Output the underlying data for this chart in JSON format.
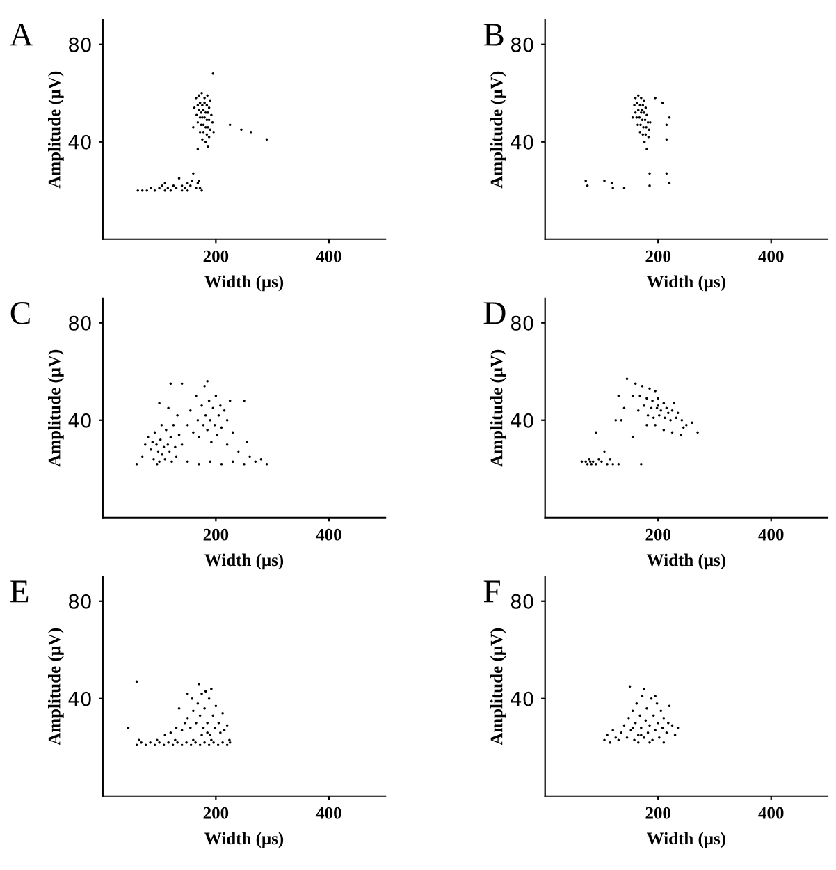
{
  "chart_data": [
    {
      "type": "scatter",
      "title": "A",
      "xlabel": "Width (μs)",
      "ylabel": "Amplitude (μV)",
      "xlim": [
        0,
        500
      ],
      "ylim": [
        0,
        90
      ],
      "xticks": [
        200,
        400
      ],
      "yticks": [
        40,
        80
      ],
      "marker": "circle",
      "series": [
        {
          "color": "#000000",
          "x": [
            165,
            170,
            175,
            180,
            185,
            190,
            168,
            172,
            176,
            180,
            184,
            188,
            162,
            170,
            174,
            178,
            182,
            186,
            192,
            166,
            172,
            176,
            180,
            184,
            188,
            194,
            168,
            174,
            178,
            182,
            186,
            190,
            172,
            178,
            184,
            188,
            176,
            182,
            160,
            196,
            186,
            168,
            195,
            225,
            245,
            262,
            290,
            62,
            70,
            78,
            85,
            92,
            100,
            105,
            110,
            115,
            120,
            125,
            130,
            135,
            140,
            145,
            150,
            155,
            158,
            160,
            165,
            168,
            170,
            172,
            175,
            110,
            140,
            150
          ],
          "values": [
            58,
            59,
            60,
            58,
            59,
            57,
            55,
            56,
            55,
            56,
            55,
            54,
            54,
            53,
            52,
            53,
            52,
            52,
            51,
            51,
            50,
            50,
            50,
            49,
            49,
            48,
            48,
            47,
            47,
            46,
            46,
            45,
            44,
            44,
            43,
            42,
            41,
            40,
            46,
            44,
            38,
            37,
            68,
            47,
            45,
            44,
            41,
            20,
            20,
            20,
            21,
            20,
            21,
            22,
            23,
            21,
            20,
            22,
            21,
            25,
            22,
            21,
            23,
            22,
            24,
            27,
            21,
            23,
            24,
            21,
            20,
            20,
            20,
            20
          ]
        }
      ]
    },
    {
      "type": "scatter",
      "title": "B",
      "xlabel": "Width (μs)",
      "ylabel": "Amplitude (μV)",
      "xlim": [
        0,
        500
      ],
      "ylim": [
        0,
        90
      ],
      "xticks": [
        200,
        400
      ],
      "yticks": [
        40,
        80
      ],
      "marker": "circle",
      "series": [
        {
          "color": "#000000",
          "x": [
            160,
            165,
            170,
            175,
            158,
            163,
            168,
            173,
            178,
            160,
            165,
            170,
            175,
            180,
            162,
            167,
            172,
            177,
            182,
            164,
            169,
            174,
            179,
            184,
            168,
            173,
            178,
            183,
            176,
            180,
            155,
            186,
            172,
            195,
            208,
            220,
            215,
            215,
            72,
            75,
            105,
            118,
            120,
            140,
            185,
            185,
            215,
            220
          ],
          "values": [
            58,
            59,
            58,
            57,
            55,
            56,
            55,
            55,
            54,
            52,
            53,
            52,
            52,
            51,
            50,
            50,
            49,
            49,
            48,
            47,
            47,
            46,
            46,
            45,
            44,
            43,
            43,
            42,
            40,
            37,
            50,
            48,
            53,
            58,
            56,
            50,
            47,
            41,
            24,
            22,
            24,
            23,
            21,
            21,
            27,
            22,
            27,
            23
          ]
        }
      ]
    },
    {
      "type": "scatter",
      "title": "C",
      "xlabel": "Width (μs)",
      "ylabel": "Amplitude (μV)",
      "xlim": [
        0,
        500
      ],
      "ylim": [
        0,
        90
      ],
      "xticks": [
        200,
        400
      ],
      "yticks": [
        40,
        80
      ],
      "marker": "circle",
      "series": [
        {
          "color": "#000000",
          "x": [
            60,
            70,
            75,
            80,
            85,
            90,
            92,
            95,
            98,
            100,
            102,
            105,
            108,
            110,
            112,
            115,
            118,
            120,
            122,
            125,
            128,
            130,
            135,
            140,
            88,
            96,
            104,
            116,
            100,
            132,
            150,
            155,
            160,
            165,
            168,
            170,
            175,
            178,
            180,
            182,
            185,
            188,
            190,
            192,
            195,
            198,
            200,
            202,
            205,
            208,
            210,
            215,
            220,
            225,
            230,
            185,
            140,
            120,
            250,
            150,
            170,
            190,
            210,
            230,
            250,
            260,
            270,
            280,
            290,
            240,
            220,
            255
          ],
          "values": [
            22,
            25,
            30,
            33,
            28,
            24,
            35,
            30,
            27,
            23,
            32,
            26,
            29,
            24,
            36,
            30,
            27,
            33,
            23,
            38,
            29,
            25,
            34,
            30,
            31,
            22,
            38,
            45,
            47,
            42,
            38,
            44,
            35,
            50,
            40,
            33,
            46,
            38,
            54,
            42,
            36,
            48,
            40,
            31,
            45,
            38,
            50,
            34,
            42,
            46,
            37,
            44,
            40,
            48,
            35,
            56,
            55,
            55,
            48,
            23,
            22,
            23,
            22,
            23,
            22,
            25,
            23,
            24,
            22,
            27,
            30,
            31
          ]
        }
      ]
    },
    {
      "type": "scatter",
      "title": "D",
      "xlabel": "Width (μs)",
      "ylabel": "Amplitude (μV)",
      "xlim": [
        0,
        500
      ],
      "ylim": [
        0,
        90
      ],
      "xticks": [
        200,
        400
      ],
      "yticks": [
        40,
        80
      ],
      "marker": "circle",
      "series": [
        {
          "color": "#000000",
          "x": [
            145,
            160,
            172,
            185,
            195,
            155,
            168,
            180,
            190,
            200,
            210,
            175,
            188,
            198,
            205,
            215,
            225,
            235,
            182,
            192,
            202,
            212,
            222,
            232,
            242,
            250,
            260,
            270,
            195,
            210,
            225,
            240,
            180,
            130,
            140,
            135,
            125,
            155,
            165,
            200,
            218,
            228,
            245,
            65,
            72,
            75,
            78,
            80,
            82,
            85,
            90,
            95,
            100,
            105,
            110,
            115,
            120,
            130,
            90,
            170
          ],
          "values": [
            57,
            55,
            54,
            53,
            52,
            50,
            50,
            49,
            48,
            49,
            47,
            46,
            45,
            45,
            44,
            45,
            44,
            43,
            42,
            41,
            42,
            41,
            40,
            41,
            40,
            38,
            39,
            35,
            38,
            36,
            35,
            34,
            38,
            50,
            45,
            40,
            40,
            33,
            44,
            46,
            43,
            47,
            37,
            23,
            23,
            22,
            24,
            23,
            22,
            23,
            22,
            24,
            23,
            27,
            22,
            24,
            22,
            22,
            35,
            22
          ]
        }
      ]
    },
    {
      "type": "scatter",
      "title": "E",
      "xlabel": "Width (μs)",
      "ylabel": "Amplitude (μV)",
      "xlim": [
        0,
        500
      ],
      "ylim": [
        0,
        90
      ],
      "xticks": [
        200,
        400
      ],
      "yticks": [
        40,
        80
      ],
      "marker": "circle",
      "series": [
        {
          "color": "#000000",
          "x": [
            60,
            68,
            76,
            84,
            92,
            100,
            108,
            116,
            124,
            132,
            140,
            148,
            156,
            164,
            172,
            180,
            188,
            196,
            204,
            212,
            220,
            225,
            64,
            96,
            128,
            160,
            192,
            224,
            110,
            120,
            130,
            140,
            145,
            150,
            155,
            160,
            165,
            168,
            170,
            172,
            175,
            178,
            180,
            182,
            185,
            188,
            190,
            192,
            195,
            198,
            200,
            205,
            208,
            212,
            215,
            220,
            135,
            150,
            158,
            185,
            175,
            60,
            45
          ],
          "values": [
            21,
            22,
            21,
            22,
            21,
            22,
            21,
            22,
            21,
            22,
            21,
            22,
            21,
            22,
            21,
            22,
            21,
            22,
            21,
            22,
            21,
            22,
            23,
            23,
            23,
            23,
            23,
            23,
            25,
            26,
            28,
            27,
            30,
            32,
            28,
            35,
            30,
            38,
            46,
            33,
            42,
            28,
            36,
            43,
            30,
            40,
            25,
            44,
            33,
            28,
            37,
            30,
            26,
            34,
            27,
            29,
            36,
            42,
            40,
            26,
            25,
            47,
            28
          ]
        }
      ]
    },
    {
      "type": "scatter",
      "title": "F",
      "xlabel": "Width (μs)",
      "ylabel": "Amplitude (μV)",
      "xlim": [
        0,
        500
      ],
      "ylim": [
        0,
        90
      ],
      "xticks": [
        200,
        400
      ],
      "yticks": [
        40,
        80
      ],
      "marker": "circle",
      "series": [
        {
          "color": "#000000",
          "x": [
            105,
            110,
            115,
            120,
            125,
            130,
            135,
            140,
            145,
            148,
            150,
            152,
            155,
            158,
            160,
            162,
            165,
            168,
            170,
            172,
            175,
            178,
            180,
            182,
            185,
            188,
            190,
            192,
            195,
            198,
            200,
            202,
            205,
            208,
            210,
            215,
            218,
            220,
            225,
            230,
            235,
            165,
            185,
            210,
            175,
            195,
            155,
            170
          ],
          "values": [
            23,
            25,
            22,
            27,
            24,
            23,
            26,
            29,
            24,
            32,
            45,
            27,
            35,
            23,
            30,
            38,
            25,
            33,
            28,
            41,
            24,
            31,
            36,
            26,
            29,
            40,
            23,
            33,
            27,
            38,
            30,
            24,
            35,
            28,
            32,
            26,
            30,
            37,
            29,
            25,
            28,
            22,
            22,
            22,
            44,
            41,
            28,
            25
          ]
        }
      ]
    }
  ]
}
